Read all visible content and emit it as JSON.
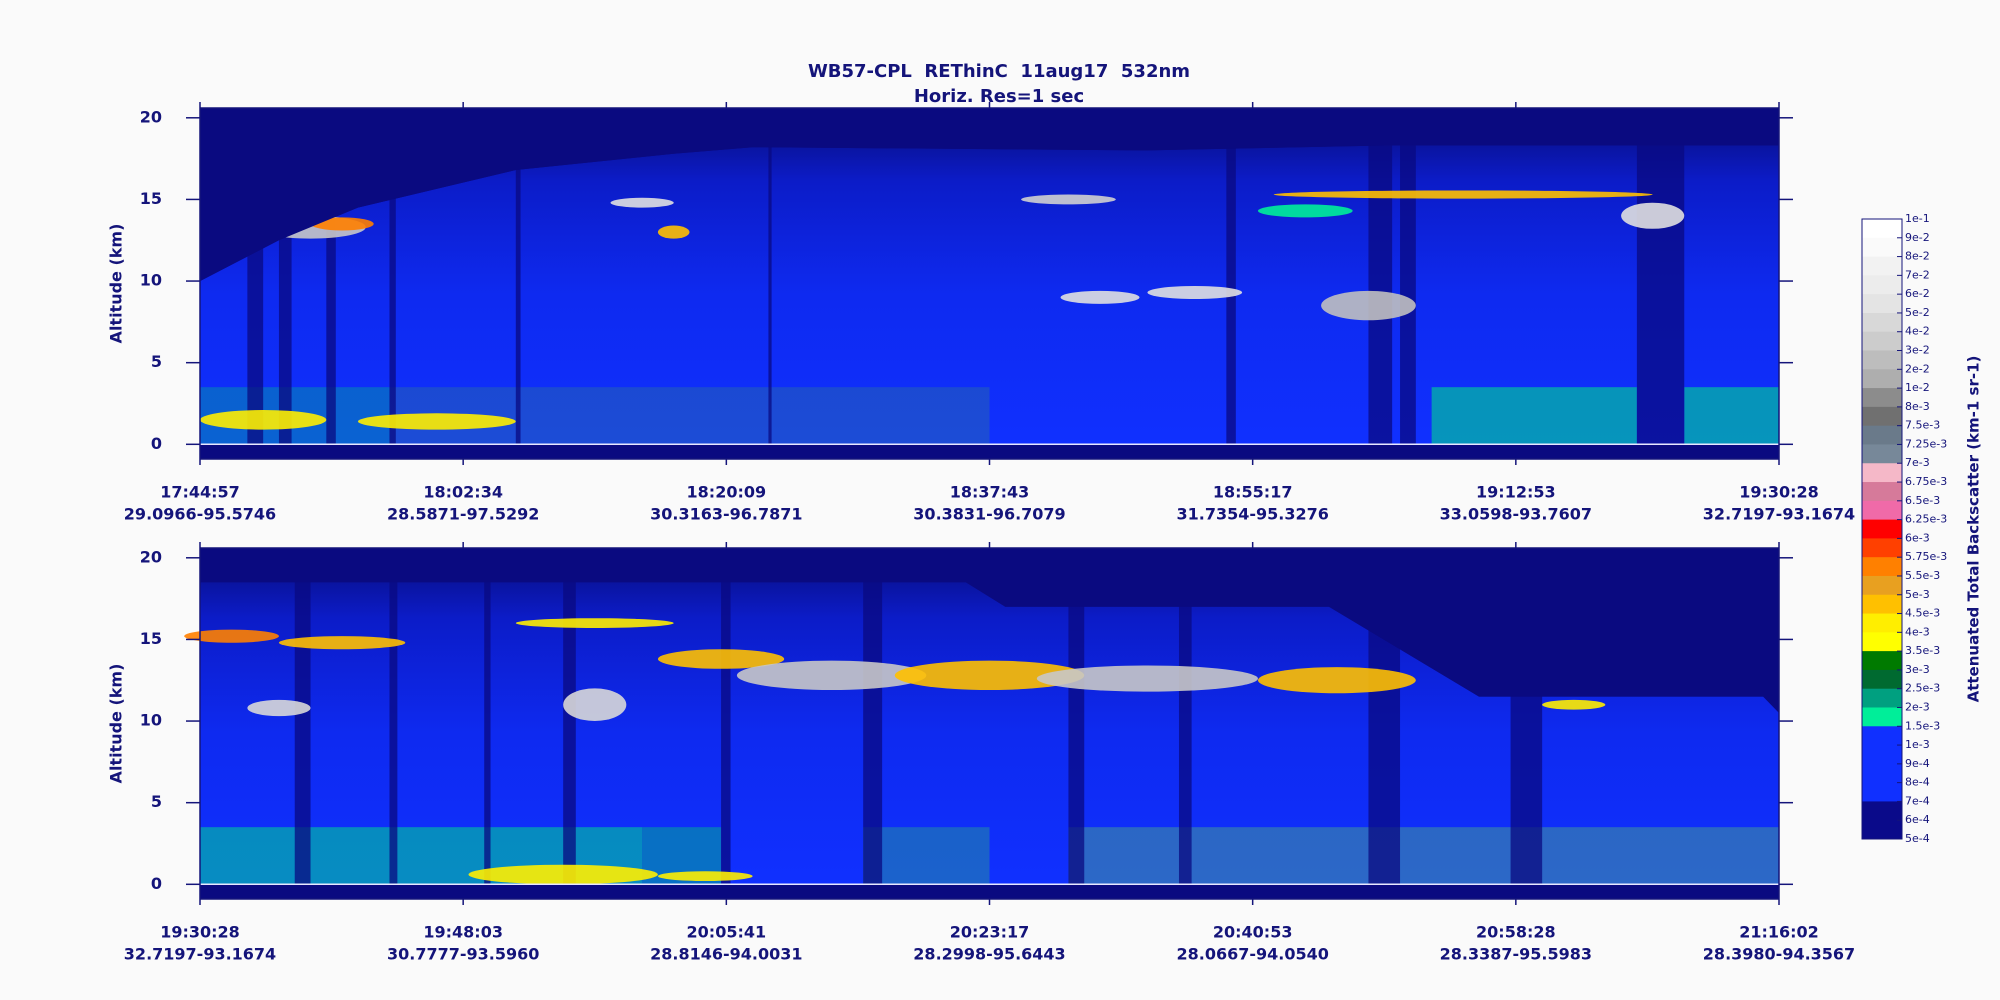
{
  "title": "WB57-CPL  REThinC  11aug17  532nm",
  "subtitle": "Horiz. Res=1 sec",
  "chart_data": [
    {
      "type": "heatmap",
      "ylabel": "Altitude (km)",
      "ylim": [
        -0.9,
        20.6
      ],
      "yticks": [
        0,
        5,
        10,
        15,
        20
      ],
      "x_labels": [
        [
          "17:44:57",
          "29.0966-95.5746"
        ],
        [
          "18:02:34",
          "28.5871-97.5292"
        ],
        [
          "18:20:09",
          "30.3163-96.7871"
        ],
        [
          "18:37:43",
          "30.3831-96.7079"
        ],
        [
          "18:55:17",
          "31.7354-95.3276"
        ],
        [
          "19:12:53",
          "33.0598-93.7607"
        ],
        [
          "19:30:28",
          "32.7197-93.1674"
        ]
      ]
    },
    {
      "type": "heatmap",
      "ylabel": "Altitude (km)",
      "ylim": [
        -0.9,
        20.6
      ],
      "yticks": [
        0,
        5,
        10,
        15,
        20
      ],
      "x_labels": [
        [
          "19:30:28",
          "32.7197-93.1674"
        ],
        [
          "19:48:03",
          "30.7777-93.5960"
        ],
        [
          "20:05:41",
          "28.8146-94.0031"
        ],
        [
          "20:23:17",
          "28.2998-95.6443"
        ],
        [
          "20:40:53",
          "28.0667-94.0540"
        ],
        [
          "20:58:28",
          "28.3387-95.5983"
        ],
        [
          "21:16:02",
          "28.3980-94.3567"
        ]
      ]
    }
  ],
  "colorbar": {
    "label": "Attenuated Total Backscatter (km-1 sr-1)",
    "ticks": [
      {
        "value": 0.1,
        "label": "1e-1"
      },
      {
        "value": 0.09,
        "label": "9e-2"
      },
      {
        "value": 0.08,
        "label": "8e-2"
      },
      {
        "value": 0.07,
        "label": "7e-2"
      },
      {
        "value": 0.06,
        "label": "6e-2"
      },
      {
        "value": 0.05,
        "label": "5e-2"
      },
      {
        "value": 0.04,
        "label": "4e-2"
      },
      {
        "value": 0.03,
        "label": "3e-2"
      },
      {
        "value": 0.02,
        "label": "2e-2"
      },
      {
        "value": 0.01,
        "label": "1e-2"
      },
      {
        "value": 0.008,
        "label": "8e-3"
      },
      {
        "value": 0.0075,
        "label": "7.5e-3"
      },
      {
        "value": 0.00725,
        "label": "7.25e-3"
      },
      {
        "value": 0.007,
        "label": "7e-3"
      },
      {
        "value": 0.00675,
        "label": "6.75e-3"
      },
      {
        "value": 0.0065,
        "label": "6.5e-3"
      },
      {
        "value": 0.00625,
        "label": "6.25e-3"
      },
      {
        "value": 0.006,
        "label": "6e-3"
      },
      {
        "value": 0.00575,
        "label": "5.75e-3"
      },
      {
        "value": 0.0055,
        "label": "5.5e-3"
      },
      {
        "value": 0.005,
        "label": "5e-3"
      },
      {
        "value": 0.0045,
        "label": "4.5e-3"
      },
      {
        "value": 0.004,
        "label": "4e-3"
      },
      {
        "value": 0.0035,
        "label": "3.5e-3"
      },
      {
        "value": 0.003,
        "label": "3e-3"
      },
      {
        "value": 0.0025,
        "label": "2.5e-3"
      },
      {
        "value": 0.002,
        "label": "2e-3"
      },
      {
        "value": 0.0015,
        "label": "1.5e-3"
      },
      {
        "value": 0.001,
        "label": "1e-3"
      },
      {
        "value": 0.0009,
        "label": "9e-4"
      },
      {
        "value": 0.0008,
        "label": "8e-4"
      },
      {
        "value": 0.0007,
        "label": "7e-4"
      },
      {
        "value": 0.0006,
        "label": "6e-4"
      },
      {
        "value": 0.0005,
        "label": "5e-4"
      }
    ],
    "colors": [
      "#ffffff",
      "#fafafa",
      "#f2f2f2",
      "#ececec",
      "#e4e4e4",
      "#d8d8d8",
      "#cccccc",
      "#bdbdbd",
      "#aeaeae",
      "#8c8c8c",
      "#707070",
      "#6a7a8a",
      "#778899",
      "#f5b8c8",
      "#d67a9a",
      "#f06aa8",
      "#ff0000",
      "#ff4000",
      "#ff8000",
      "#e8a020",
      "#ffc000",
      "#ffee00",
      "#ffff00",
      "#007a00",
      "#006a30",
      "#00a080",
      "#00ee99",
      "#1030ff",
      "#1030ff",
      "#1030ff",
      "#1030ff",
      "#0a0a8a",
      "#0a0a8a"
    ]
  }
}
